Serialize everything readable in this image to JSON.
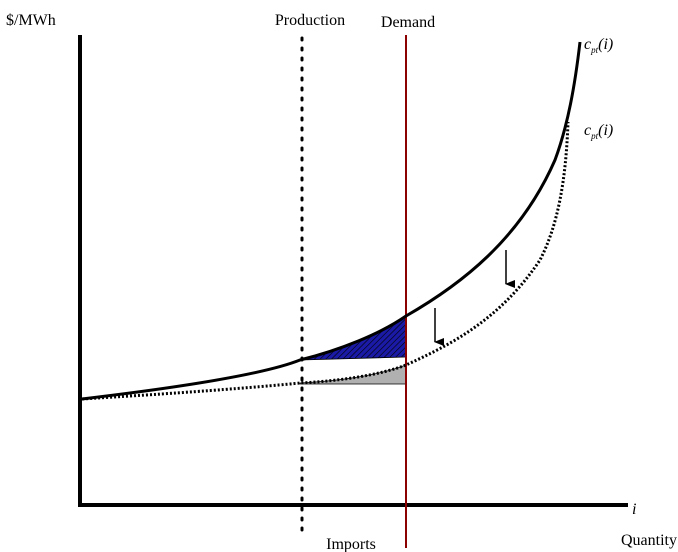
{
  "diagram": {
    "y_axis_label": "$/MWh",
    "x_axis_label": "Quantity",
    "x_axis_var": "i",
    "production_label": "Production",
    "demand_label": "Demand",
    "imports_label": "Imports",
    "curve_upper_label": {
      "base": "c",
      "sub": "pt",
      "tail": "(i)"
    },
    "curve_lower_label": {
      "base": "c",
      "sub": "pt",
      "tail": "(i)"
    },
    "colors": {
      "demand_line": "#8b0000",
      "upper_area_fill": "#1a1aa6",
      "lower_area_fill": "#b0b0b0",
      "axis": "#000000"
    }
  }
}
